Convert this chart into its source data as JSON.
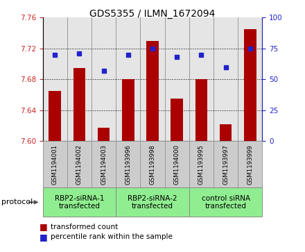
{
  "title": "GDS5355 / ILMN_1672094",
  "samples": [
    "GSM1194001",
    "GSM1194002",
    "GSM1194003",
    "GSM1193996",
    "GSM1193998",
    "GSM1194000",
    "GSM1193995",
    "GSM1193997",
    "GSM1193999"
  ],
  "transformed_count": [
    7.665,
    7.695,
    7.617,
    7.68,
    7.73,
    7.655,
    7.68,
    7.622,
    7.745
  ],
  "percentile_rank": [
    70,
    71,
    57,
    70,
    75,
    68,
    70,
    60,
    75
  ],
  "ylim_left": [
    7.6,
    7.76
  ],
  "ylim_right": [
    0,
    100
  ],
  "yticks_left": [
    7.6,
    7.64,
    7.68,
    7.72,
    7.76
  ],
  "yticks_right": [
    0,
    25,
    50,
    75,
    100
  ],
  "groups": [
    {
      "label": "RBP2-siRNA-1\ntransfected",
      "indices": [
        0,
        1,
        2
      ],
      "color": "#90EE90"
    },
    {
      "label": "RBP2-siRNA-2\ntransfected",
      "indices": [
        3,
        4,
        5
      ],
      "color": "#90EE90"
    },
    {
      "label": "control siRNA\ntransfected",
      "indices": [
        6,
        7,
        8
      ],
      "color": "#90EE90"
    }
  ],
  "bar_color": "#AA0000",
  "dot_color": "#2222CC",
  "bar_bottom": 7.6,
  "sample_bg_color": "#CCCCCC",
  "plot_bg_color": "#FFFFFF",
  "protocol_label": "protocol",
  "legend_bar_label": "transformed count",
  "legend_dot_label": "percentile rank within the sample",
  "left_tick_color": "#CC2222",
  "right_tick_color": "#2222CC",
  "grid_yticks": [
    7.64,
    7.68,
    7.72
  ]
}
